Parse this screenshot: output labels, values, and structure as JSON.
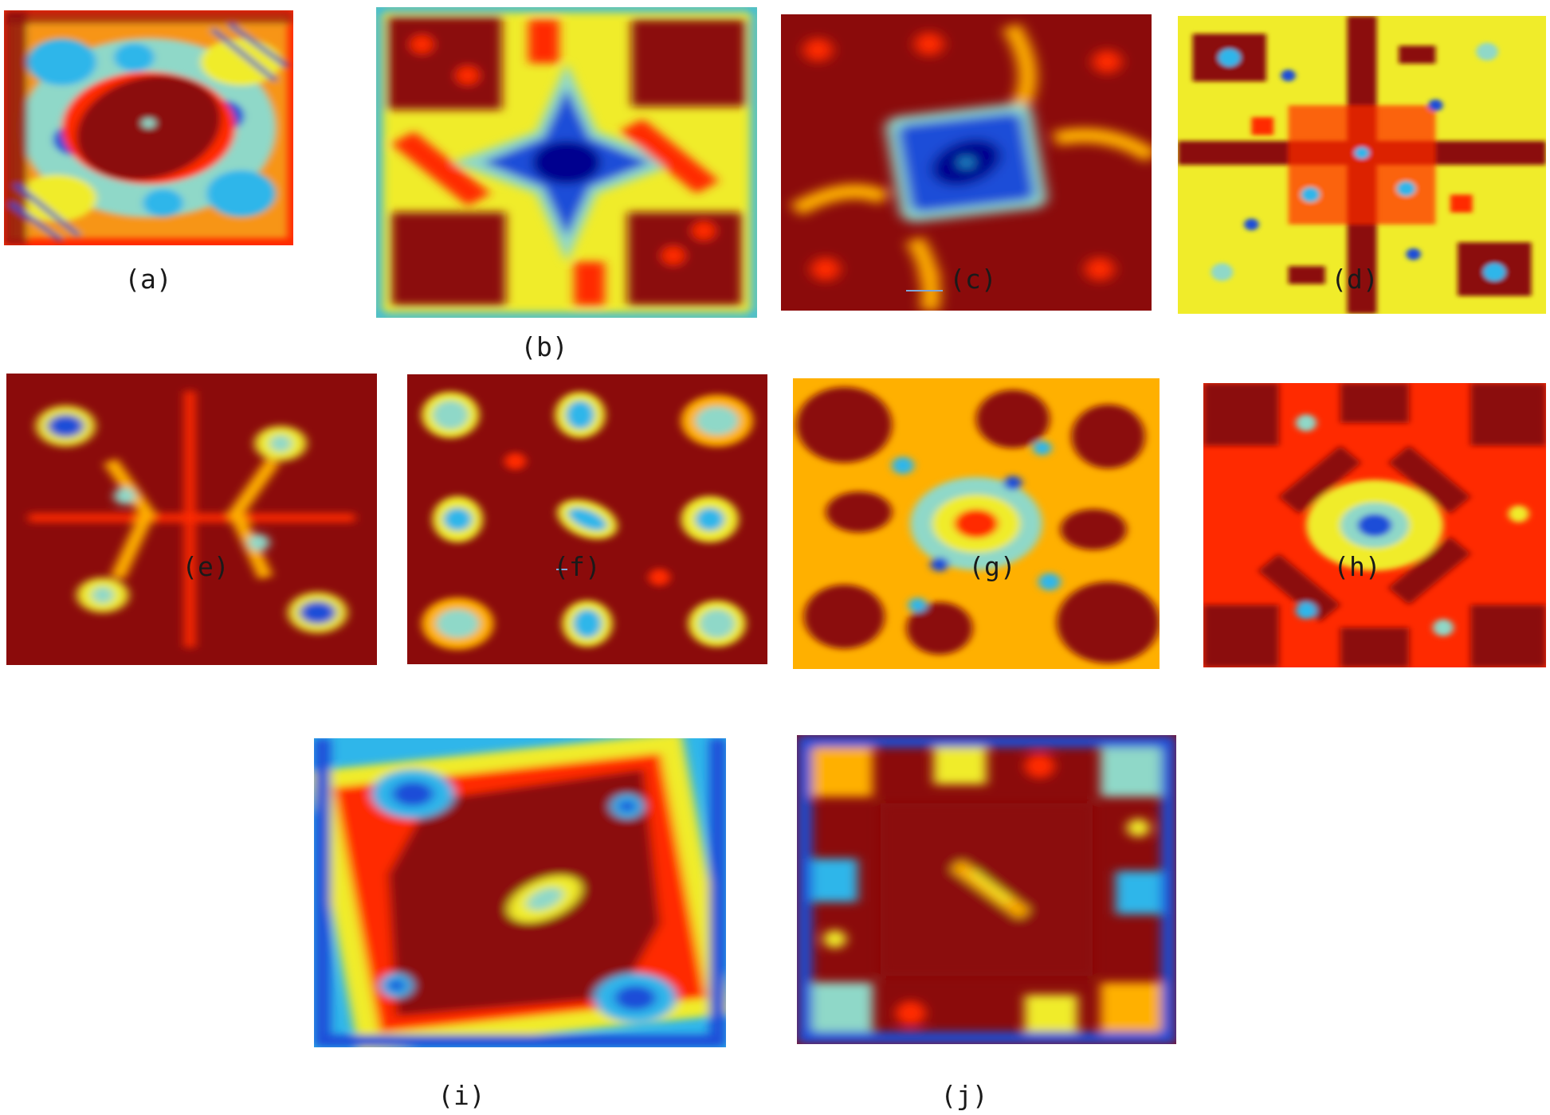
{
  "figure": {
    "colormap": [
      "#00008f",
      "#1f4ed8",
      "#2fb6ea",
      "#8fd8c8",
      "#f0ec2a",
      "#ffb000",
      "#ff2a00",
      "#8b0b0b"
    ],
    "panels": [
      {
        "id": "a",
        "label": "(a)",
        "pattern": "broad dark-red core with blue-cyan ring and diagonal striped corners"
      },
      {
        "id": "b",
        "label": "(b)",
        "pattern": "blue star-shaped center, red blocky corners"
      },
      {
        "id": "c",
        "label": "(c)",
        "pattern": "blue square center outlined in cyan on red background"
      },
      {
        "id": "d",
        "label": "(d)",
        "pattern": "fine-grained cross pattern of red, yellow and blue"
      },
      {
        "id": "e",
        "label": "(e)",
        "pattern": "dark-red field with yellow cross arms and two blue spots"
      },
      {
        "id": "f",
        "label": "(f)",
        "pattern": "red field with scattered cyan islands and checkered corners"
      },
      {
        "id": "g",
        "label": "(g)",
        "pattern": "red lobes with a yellow-cyan central ring network"
      },
      {
        "id": "h",
        "label": "(h)",
        "pattern": "red diagonal blocks with a blue spot at the center"
      },
      {
        "id": "i",
        "label": "(i)",
        "pattern": "dark-red rotated core inside cyan-blue border"
      },
      {
        "id": "j",
        "label": "(j)",
        "pattern": "dark-red square center with blue-edged checkered border"
      }
    ]
  }
}
